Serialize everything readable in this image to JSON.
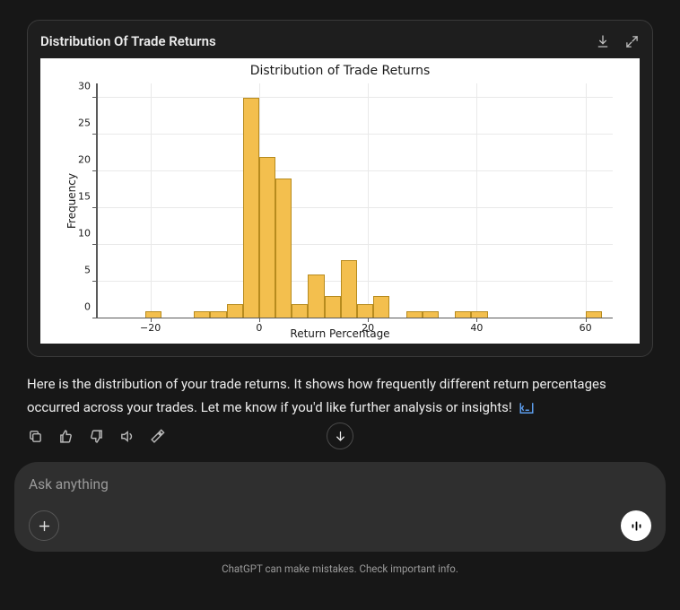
{
  "card": {
    "title": "Distribution Of Trade Returns"
  },
  "chart": {
    "type": "histogram",
    "title": "Distribution of Trade Returns",
    "xlabel": "Return Percentage",
    "ylabel": "Frequency",
    "xlim": [
      -30,
      65
    ],
    "ylim": [
      0,
      32
    ],
    "xticks": [
      -20,
      0,
      20,
      40,
      60
    ],
    "yticks": [
      0,
      5,
      10,
      15,
      20,
      25,
      30
    ],
    "bar_fill": "#f3bf4e",
    "bar_edge": "#b78b1e",
    "background_color": "#ffffff",
    "grid_color": "#e9e9e9",
    "spine_color": "#5a5a5a",
    "title_fontsize": 14,
    "label_fontsize": 12,
    "tick_fontsize": 11,
    "bin_width": 3,
    "bins": [
      {
        "x": -21,
        "count": 1
      },
      {
        "x": -12,
        "count": 1
      },
      {
        "x": -9,
        "count": 1
      },
      {
        "x": -6,
        "count": 2
      },
      {
        "x": -3,
        "count": 30
      },
      {
        "x": 0,
        "count": 22
      },
      {
        "x": 3,
        "count": 19
      },
      {
        "x": 6,
        "count": 2
      },
      {
        "x": 9,
        "count": 6
      },
      {
        "x": 12,
        "count": 3
      },
      {
        "x": 15,
        "count": 8
      },
      {
        "x": 18,
        "count": 2
      },
      {
        "x": 21,
        "count": 3
      },
      {
        "x": 27,
        "count": 1
      },
      {
        "x": 30,
        "count": 1
      },
      {
        "x": 36,
        "count": 1
      },
      {
        "x": 39,
        "count": 1
      },
      {
        "x": 60,
        "count": 1
      }
    ]
  },
  "message": {
    "text": "Here is the distribution of your trade returns. It shows how frequently different return percentages occurred across your trades. Let me know if you'd like further analysis or insights! "
  },
  "composer": {
    "placeholder": "Ask anything"
  },
  "disclaimer": "ChatGPT can make mistakes. Check important info."
}
